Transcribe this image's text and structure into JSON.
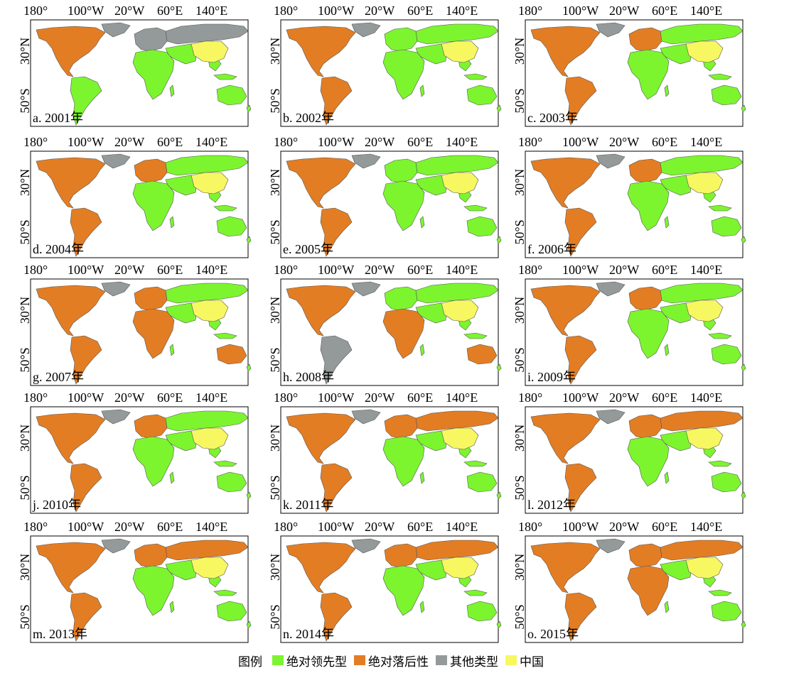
{
  "colors": {
    "absolute_leading": "#7cf52f",
    "absolute_lagging": "#e37d23",
    "other": "#949a9a",
    "china": "#f7f762",
    "ocean": "#ffffff",
    "border": "#555555"
  },
  "axes": {
    "top_ticks": [
      "180°",
      "100°W",
      "20°W",
      "60°E",
      "140°E"
    ],
    "left_ticks": [
      "30°N",
      "50°S"
    ]
  },
  "panels": [
    {
      "label": "a. 2001年",
      "north_america": "absolute_lagging",
      "greenland": "other",
      "south_america": "absolute_leading",
      "europe": "other",
      "russia": "other",
      "africa": "absolute_leading",
      "australia": "absolute_leading"
    },
    {
      "label": "b. 2002年",
      "north_america": "absolute_lagging",
      "greenland": "other",
      "south_america": "absolute_lagging",
      "europe": "absolute_leading",
      "russia": "absolute_leading",
      "africa": "absolute_leading",
      "australia": "absolute_leading"
    },
    {
      "label": "c. 2003年",
      "north_america": "absolute_lagging",
      "greenland": "other",
      "south_america": "absolute_lagging",
      "europe": "absolute_lagging",
      "russia": "absolute_leading",
      "africa": "absolute_leading",
      "australia": "absolute_leading"
    },
    {
      "label": "d. 2004年",
      "north_america": "absolute_lagging",
      "greenland": "other",
      "south_america": "absolute_lagging",
      "europe": "absolute_lagging",
      "russia": "absolute_leading",
      "africa": "absolute_leading",
      "australia": "absolute_leading"
    },
    {
      "label": "e. 2005年",
      "north_america": "absolute_lagging",
      "greenland": "other",
      "south_america": "absolute_lagging",
      "europe": "absolute_leading",
      "russia": "absolute_leading",
      "africa": "absolute_leading",
      "australia": "absolute_leading"
    },
    {
      "label": "f. 2006年",
      "north_america": "absolute_lagging",
      "greenland": "other",
      "south_america": "absolute_lagging",
      "europe": "absolute_lagging",
      "russia": "absolute_leading",
      "africa": "absolute_leading",
      "australia": "absolute_leading"
    },
    {
      "label": "g. 2007年",
      "north_america": "absolute_lagging",
      "greenland": "other",
      "south_america": "absolute_lagging",
      "europe": "absolute_lagging",
      "russia": "absolute_leading",
      "africa": "absolute_lagging",
      "australia": "absolute_lagging"
    },
    {
      "label": "h. 2008年",
      "north_america": "absolute_lagging",
      "greenland": "other",
      "south_america": "other",
      "europe": "absolute_leading",
      "russia": "absolute_leading",
      "africa": "absolute_lagging",
      "australia": "absolute_lagging"
    },
    {
      "label": "i. 2009年",
      "north_america": "absolute_lagging",
      "greenland": "other",
      "south_america": "absolute_lagging",
      "europe": "absolute_lagging",
      "russia": "absolute_leading",
      "africa": "absolute_leading",
      "australia": "absolute_leading"
    },
    {
      "label": "j. 2010年",
      "north_america": "absolute_lagging",
      "greenland": "other",
      "south_america": "absolute_lagging",
      "europe": "absolute_lagging",
      "russia": "absolute_leading",
      "africa": "absolute_leading",
      "australia": "absolute_leading"
    },
    {
      "label": "k. 2011年",
      "north_america": "absolute_lagging",
      "greenland": "other",
      "south_america": "absolute_lagging",
      "europe": "absolute_lagging",
      "russia": "absolute_lagging",
      "africa": "absolute_leading",
      "australia": "absolute_leading"
    },
    {
      "label": "l. 2012年",
      "north_america": "absolute_lagging",
      "greenland": "other",
      "south_america": "absolute_lagging",
      "europe": "absolute_lagging",
      "russia": "absolute_lagging",
      "africa": "absolute_leading",
      "australia": "absolute_leading"
    },
    {
      "label": "m. 2013年",
      "north_america": "absolute_lagging",
      "greenland": "other",
      "south_america": "absolute_lagging",
      "europe": "absolute_lagging",
      "russia": "absolute_lagging",
      "africa": "absolute_leading",
      "australia": "absolute_leading"
    },
    {
      "label": "n. 2014年",
      "north_america": "absolute_lagging",
      "greenland": "other",
      "south_america": "absolute_lagging",
      "europe": "absolute_lagging",
      "russia": "absolute_lagging",
      "africa": "absolute_leading",
      "australia": "absolute_leading"
    },
    {
      "label": "o. 2015年",
      "north_america": "absolute_lagging",
      "greenland": "other",
      "south_america": "absolute_lagging",
      "europe": "absolute_lagging",
      "russia": "absolute_lagging",
      "africa": "absolute_lagging",
      "australia": "absolute_leading"
    }
  ],
  "legend": {
    "title": "图例",
    "items": [
      {
        "key": "absolute_leading",
        "label": "绝对领先型"
      },
      {
        "key": "absolute_lagging",
        "label": "绝对落后性"
      },
      {
        "key": "other",
        "label": "其他类型"
      },
      {
        "key": "china",
        "label": "中国"
      }
    ]
  }
}
